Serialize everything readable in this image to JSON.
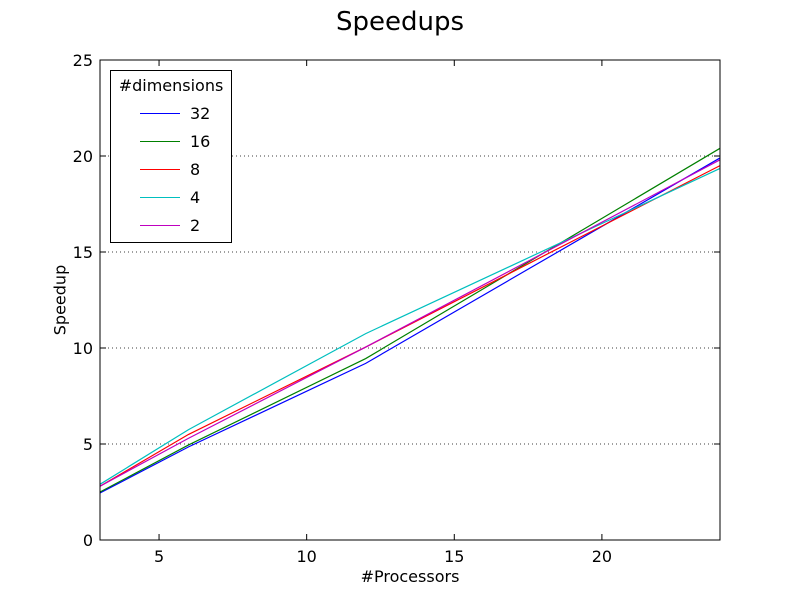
{
  "chart_data": {
    "type": "line",
    "title": "Speedups",
    "xlabel": "#Processors",
    "ylabel": "Speedup",
    "xlim": [
      3,
      24
    ],
    "ylim": [
      0,
      25
    ],
    "xticks": [
      5,
      10,
      15,
      20
    ],
    "yticks": [
      0,
      5,
      10,
      15,
      20,
      25
    ],
    "grid": "horizontal dotted",
    "legend": {
      "title": "#dimensions",
      "placement": "top-left"
    },
    "x": [
      3,
      6,
      12,
      24
    ],
    "series": [
      {
        "name": "32",
        "color": "#0000ff",
        "values": [
          2.45,
          4.85,
          9.2,
          19.9
        ]
      },
      {
        "name": "16",
        "color": "#008000",
        "values": [
          2.5,
          4.95,
          9.45,
          20.4
        ]
      },
      {
        "name": "8",
        "color": "#ff0000",
        "values": [
          2.8,
          5.5,
          10.05,
          19.5
        ]
      },
      {
        "name": "4",
        "color": "#00bfbf",
        "values": [
          2.9,
          5.75,
          10.75,
          19.35
        ]
      },
      {
        "name": "2",
        "color": "#bf00bf",
        "values": [
          2.8,
          5.3,
          10.05,
          19.8
        ]
      }
    ]
  }
}
